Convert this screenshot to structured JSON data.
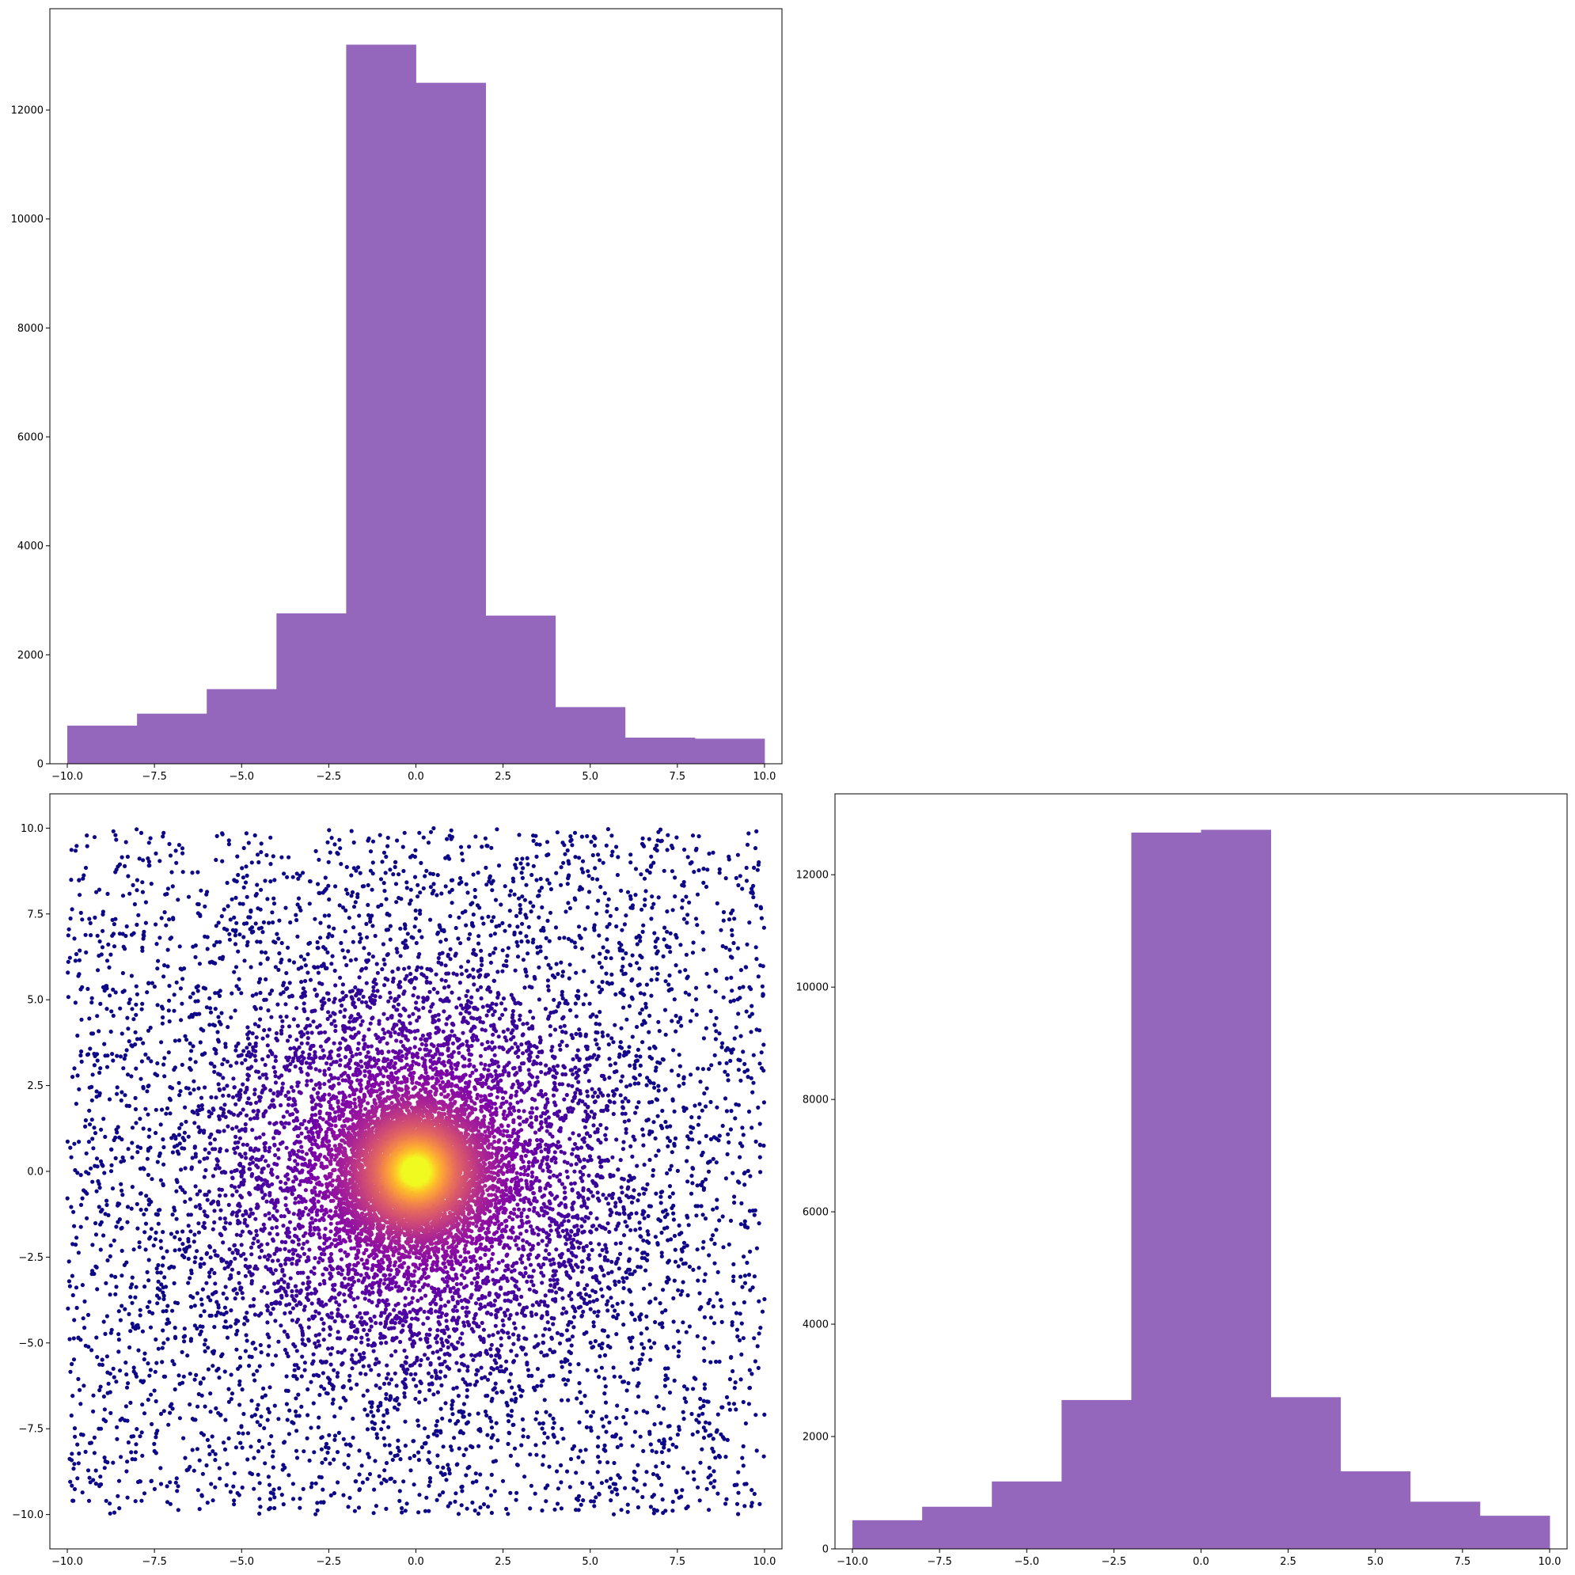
{
  "colors": {
    "hist_fill": "#9467bd",
    "scatter_colormap": "plasma",
    "scatter_low": "#2a0593",
    "scatter_high": "#f0f921"
  },
  "chart_data": [
    {
      "id": "top-left-histogram",
      "type": "bar",
      "subtype": "histogram",
      "title": "",
      "xlabel": "",
      "ylabel": "",
      "bin_edges": [
        -10,
        -8,
        -6,
        -4,
        -2,
        0,
        2,
        4,
        6,
        8,
        10
      ],
      "values": [
        700,
        920,
        1370,
        2760,
        13200,
        12500,
        2720,
        1040,
        480,
        460
      ],
      "xlim": [
        -10.5,
        10.5
      ],
      "ylim": [
        0,
        13860
      ],
      "xticks": [
        -10,
        -7.5,
        -5,
        -2.5,
        0,
        2.5,
        5,
        7.5,
        10
      ],
      "xtick_labels": [
        "−10.0",
        "−7.5",
        "−5.0",
        "−2.5",
        "0.0",
        "2.5",
        "5.0",
        "7.5",
        "10.0"
      ],
      "yticks": [
        0,
        2000,
        4000,
        6000,
        8000,
        10000,
        12000
      ],
      "ytick_labels": [
        "0",
        "2000",
        "4000",
        "6000",
        "8000",
        "10000",
        "12000"
      ],
      "grid": false,
      "legend": "none"
    },
    {
      "id": "bottom-left-scatter",
      "type": "scatter",
      "title": "",
      "xlabel": "",
      "ylabel": "",
      "description_of_points": "about 15000 points within [-10,10] x [-10,10], densely concentrated near (0,0); colour by local density (plasma colormap, yellow at centre)",
      "point_count": 15000,
      "center": [
        0,
        0
      ],
      "x_range": [
        -10,
        10
      ],
      "y_range": [
        -10,
        10
      ],
      "xlim": [
        -10.5,
        10.5
      ],
      "ylim": [
        -11,
        11
      ],
      "xticks": [
        -10,
        -7.5,
        -5,
        -2.5,
        0,
        2.5,
        5,
        7.5,
        10
      ],
      "xtick_labels": [
        "−10.0",
        "−7.5",
        "−5.0",
        "−2.5",
        "0.0",
        "2.5",
        "5.0",
        "7.5",
        "10.0"
      ],
      "yticks": [
        -10,
        -7.5,
        -5,
        -2.5,
        0,
        2.5,
        5,
        7.5,
        10
      ],
      "ytick_labels": [
        "−10.0",
        "−7.5",
        "−5.0",
        "−2.5",
        "0.0",
        "2.5",
        "5.0",
        "7.5",
        "10.0"
      ],
      "grid": false,
      "legend": "none"
    },
    {
      "id": "bottom-right-histogram",
      "type": "bar",
      "subtype": "histogram",
      "title": "",
      "xlabel": "",
      "ylabel": "",
      "bin_edges": [
        -10,
        -8,
        -6,
        -4,
        -2,
        0,
        2,
        4,
        6,
        8,
        10
      ],
      "values": [
        510,
        750,
        1200,
        2650,
        12750,
        12800,
        2700,
        1380,
        840,
        590
      ],
      "xlim": [
        -10.5,
        10.5
      ],
      "ylim": [
        0,
        13440
      ],
      "xticks": [
        -10,
        -7.5,
        -5,
        -2.5,
        0,
        2.5,
        5,
        7.5,
        10
      ],
      "xtick_labels": [
        "−10.0",
        "−7.5",
        "−5.0",
        "−2.5",
        "0.0",
        "2.5",
        "5.0",
        "7.5",
        "10.0"
      ],
      "yticks": [
        0,
        2000,
        4000,
        6000,
        8000,
        10000,
        12000
      ],
      "ytick_labels": [
        "0",
        "2000",
        "4000",
        "6000",
        "8000",
        "10000",
        "12000"
      ],
      "grid": false,
      "legend": "none"
    }
  ]
}
